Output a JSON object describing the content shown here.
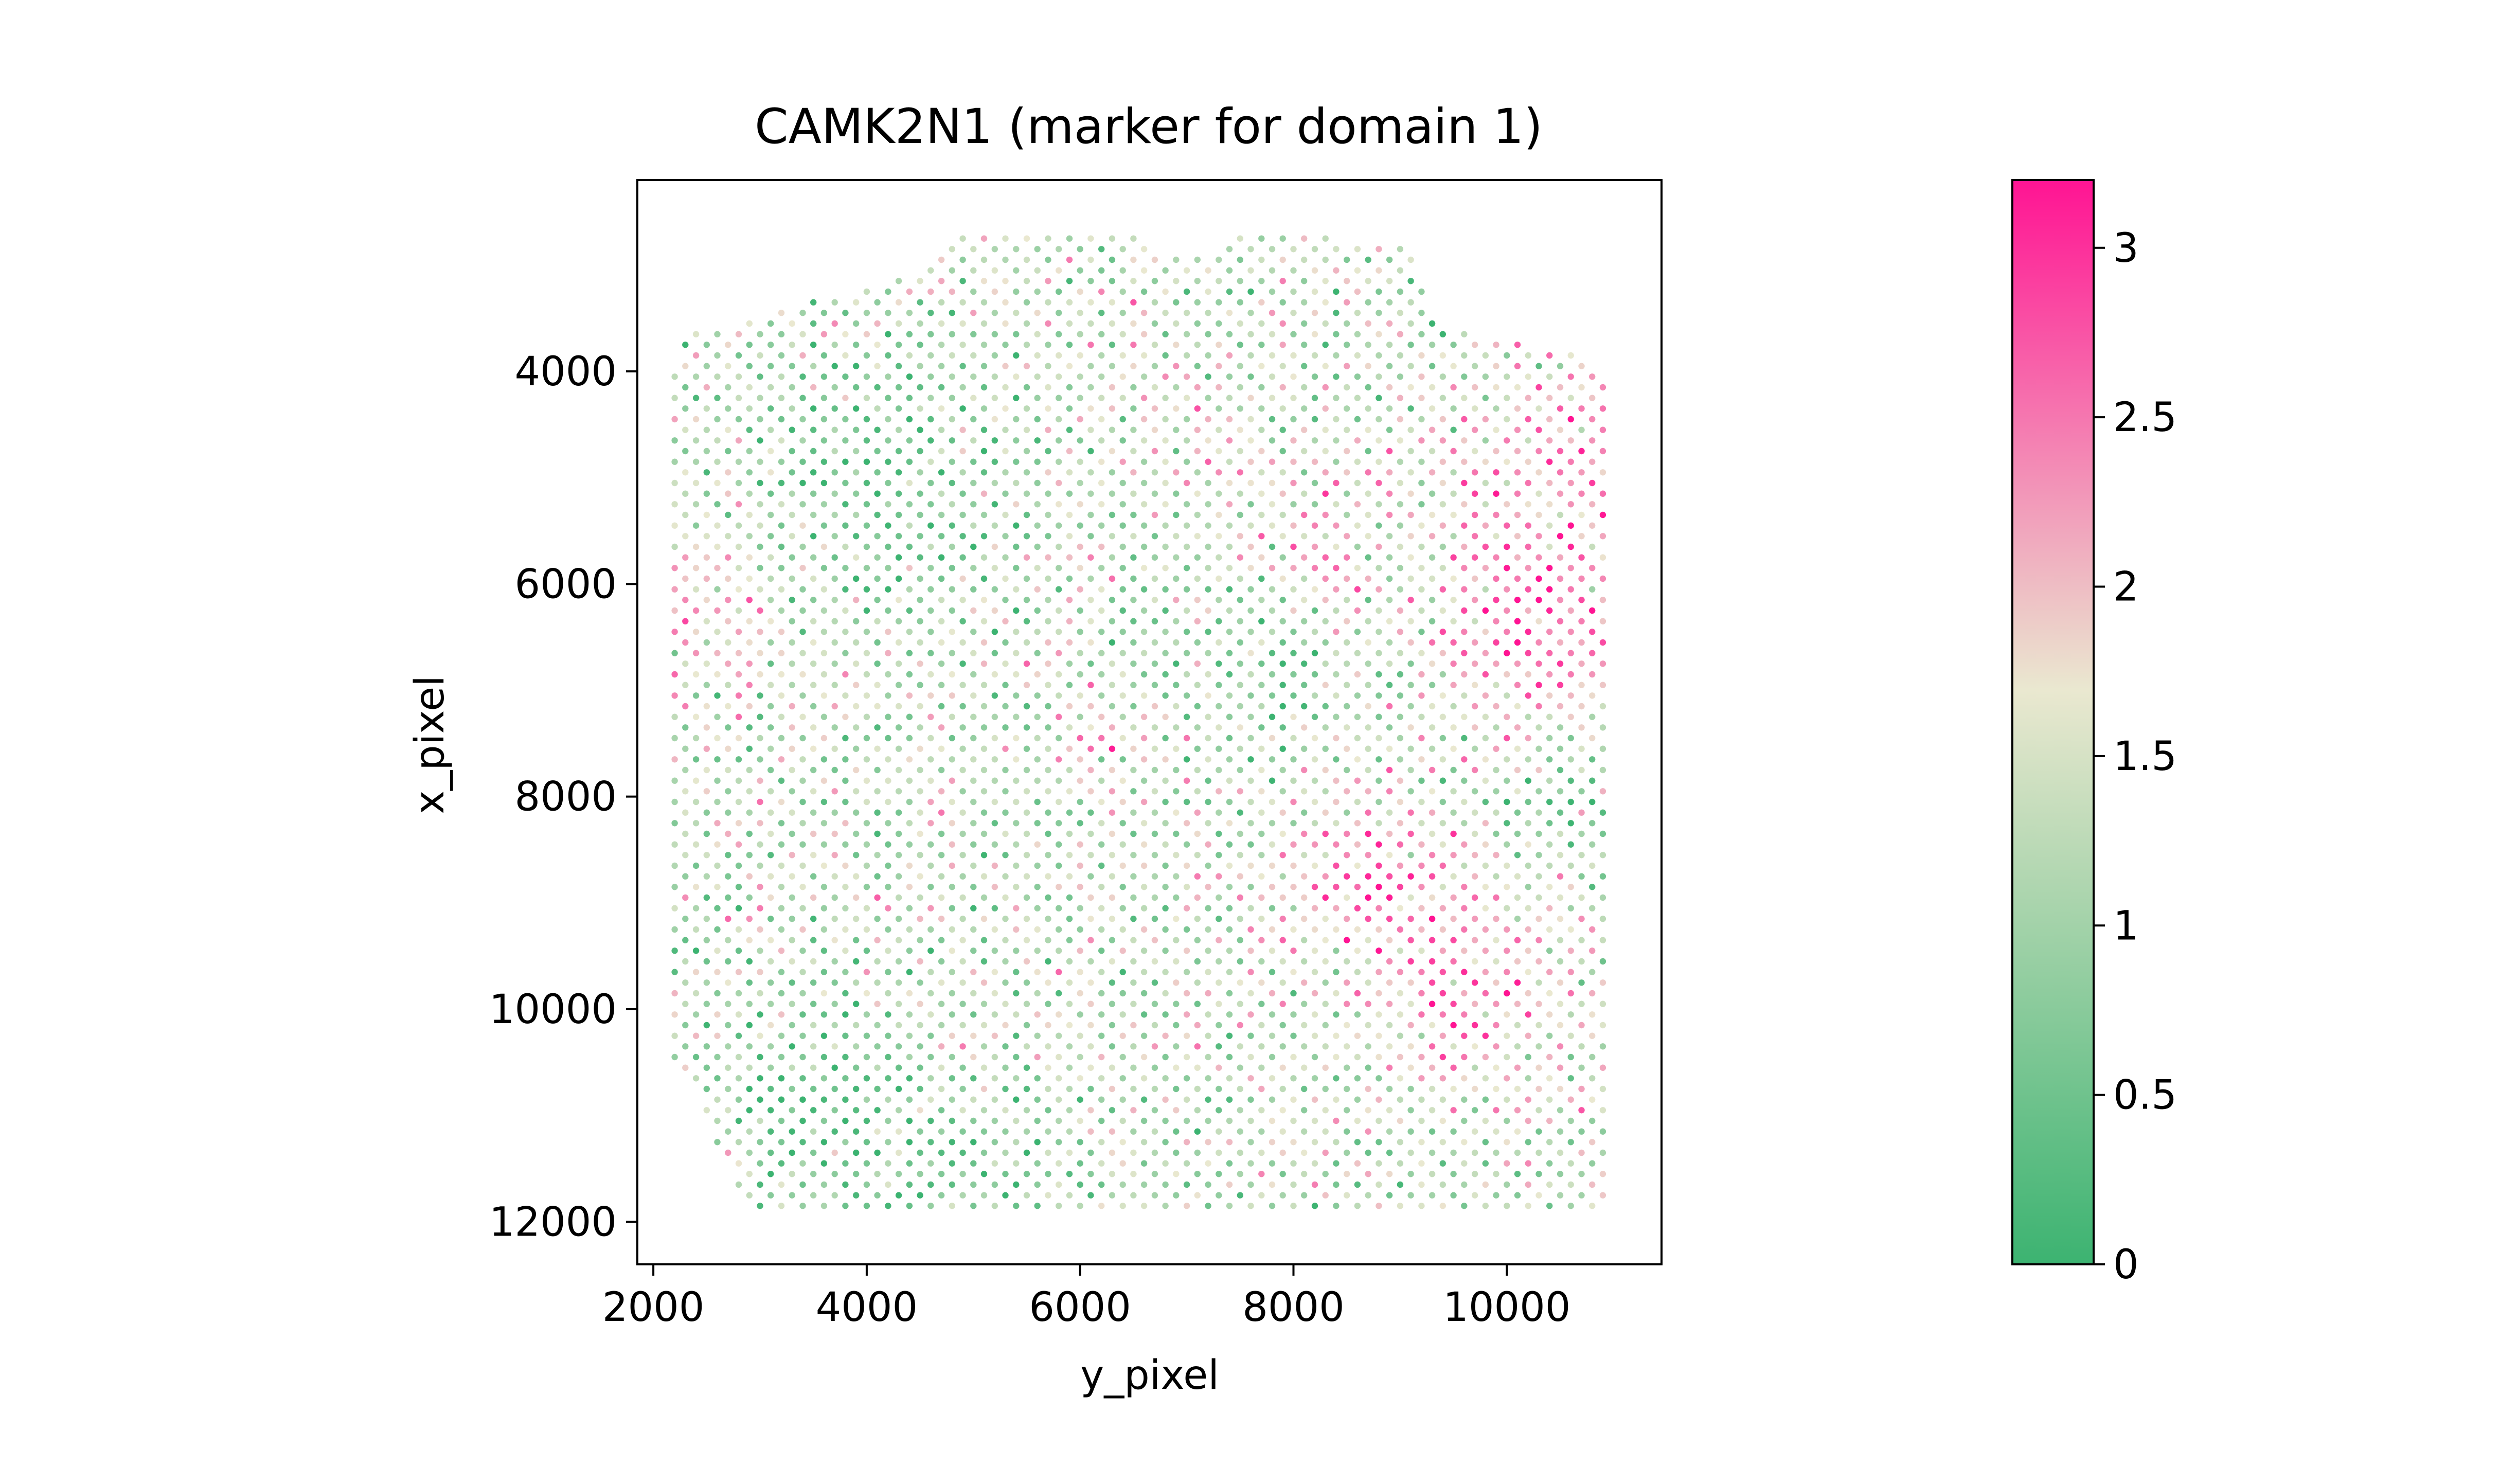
{
  "chart_data": {
    "type": "scatter",
    "title": "CAMK2N1 (marker for domain 1)",
    "xlabel": "y_pixel",
    "ylabel": "x_pixel",
    "xlim": [
      1850,
      11450
    ],
    "ylim": [
      12400,
      2200
    ],
    "y_inverted": true,
    "grid": false,
    "x_ticks": [
      2000,
      4000,
      6000,
      8000,
      10000
    ],
    "y_ticks": [
      4000,
      6000,
      8000,
      10000,
      12000
    ],
    "x_tick_labels": [
      "2000",
      "4000",
      "6000",
      "8000",
      "10000"
    ],
    "y_tick_labels": [
      "4000",
      "6000",
      "8000",
      "10000",
      "12000"
    ],
    "spot_spacing": 200,
    "tissue_outline": [
      [
        4800,
        2700
      ],
      [
        6500,
        2700
      ],
      [
        6950,
        2950
      ],
      [
        7600,
        2700
      ],
      [
        9100,
        2800
      ],
      [
        9350,
        3550
      ],
      [
        10850,
        3900
      ],
      [
        11000,
        4200
      ],
      [
        11000,
        11950
      ],
      [
        3000,
        11950
      ],
      [
        2800,
        11750
      ],
      [
        2500,
        11000
      ],
      [
        2100,
        10300
      ],
      [
        2120,
        4000
      ],
      [
        2350,
        3650
      ],
      [
        2700,
        3600
      ],
      [
        3500,
        3350
      ],
      [
        4200,
        3200
      ],
      [
        4500,
        3050
      ],
      [
        4800,
        2800
      ]
    ],
    "hotspots": [
      {
        "x": 10300,
        "y": 6400,
        "r": 900,
        "v": 1.6
      },
      {
        "x": 10500,
        "y": 4700,
        "r": 900,
        "v": 1.1
      },
      {
        "x": 8700,
        "y": 8700,
        "r": 800,
        "v": 1.2
      },
      {
        "x": 9700,
        "y": 9900,
        "r": 900,
        "v": 1.2
      },
      {
        "x": 8200,
        "y": 5800,
        "r": 700,
        "v": 0.8
      },
      {
        "x": 2500,
        "y": 6200,
        "r": 800,
        "v": 0.7
      },
      {
        "x": 6300,
        "y": 7500,
        "r": 600,
        "v": 0.6
      },
      {
        "x": 7000,
        "y": 4500,
        "r": 600,
        "v": 0.6
      },
      {
        "x": 4000,
        "y": 4900,
        "r": 1100,
        "v": -1.0
      },
      {
        "x": 3500,
        "y": 11000,
        "r": 1000,
        "v": -0.9
      },
      {
        "x": 7600,
        "y": 6800,
        "r": 900,
        "v": -0.6
      },
      {
        "x": 10500,
        "y": 8000,
        "r": 800,
        "v": -0.5
      },
      {
        "x": 5200,
        "y": 11600,
        "r": 800,
        "v": -0.6
      }
    ],
    "base_value": 1.25,
    "value_range": [
      0,
      3.2
    ],
    "colorbar": {
      "ticks": [
        0,
        0.5,
        1,
        1.5,
        2,
        2.5,
        3
      ],
      "tick_labels": [
        "0",
        "0.5",
        "1",
        "1.5",
        "2",
        "2.5",
        "3"
      ],
      "min": 0,
      "max": 3.2,
      "colors": [
        "#3cb371",
        "#eae8d0",
        "#ff1493"
      ]
    }
  }
}
